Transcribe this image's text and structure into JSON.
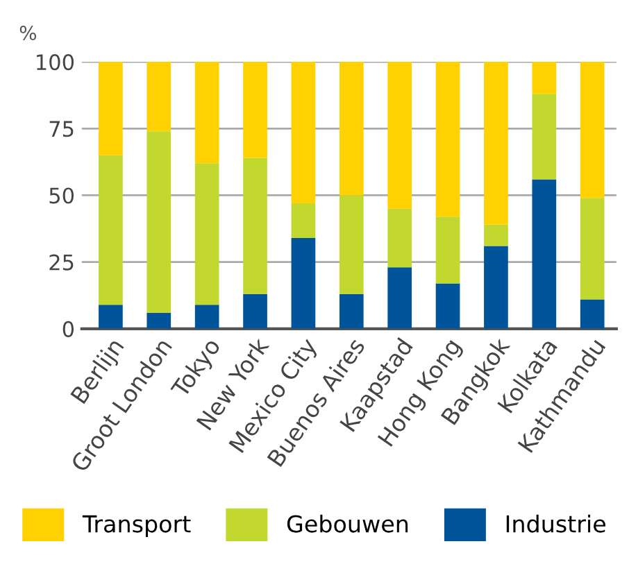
{
  "chart_data": {
    "type": "bar",
    "stacked": true,
    "ylabel": "%",
    "categories": [
      "Berlijn",
      "Groot London",
      "Tokyo",
      "New York",
      "Mexico City",
      "Buenos Aires",
      "Kaapstad",
      "Hong Kong",
      "Bangkok",
      "Kolkata",
      "Kathmandu"
    ],
    "series": [
      {
        "name": "Industrie",
        "color": "#00559a",
        "values": [
          9,
          6,
          9,
          13,
          34,
          13,
          23,
          17,
          31,
          56,
          11
        ]
      },
      {
        "name": "Gebouwen",
        "color": "#c2d82e",
        "values": [
          56,
          68,
          53,
          51,
          13,
          37,
          22,
          25,
          8,
          32,
          38
        ]
      },
      {
        "name": "Transport",
        "color": "#ffd100",
        "values": [
          35,
          26,
          38,
          36,
          53,
          50,
          55,
          58,
          61,
          12,
          51
        ]
      }
    ],
    "ylim": [
      0,
      100
    ],
    "yticks": [
      0,
      25,
      50,
      75,
      100
    ],
    "grid": "y",
    "legend": "bottom"
  }
}
